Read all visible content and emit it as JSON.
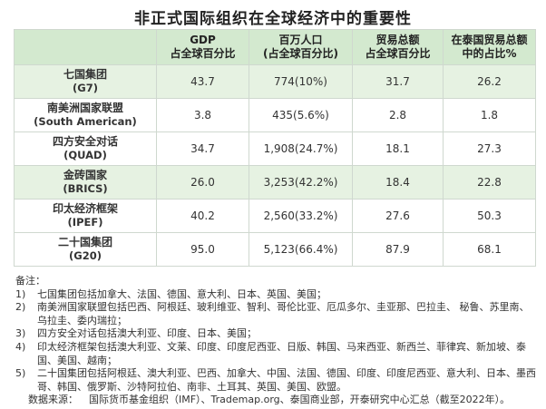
{
  "title": "非正式国际组织在全球经济中的重要性",
  "headers": [
    {
      "l1": "",
      "l2": ""
    },
    {
      "l1": "GDP",
      "l2": "占全球百分比"
    },
    {
      "l1": "百万人口",
      "l2": "(占全球百分比)"
    },
    {
      "l1": "贸易总额",
      "l2": "占全球百分比"
    },
    {
      "l1": "在泰国贸易总额",
      "l2": "中的占比%"
    }
  ],
  "rows": [
    {
      "name": "七国集团",
      "abbr": "(G7)",
      "gdp": "43.7",
      "pop": "774(10%)",
      "trade": "31.7",
      "thai": "26.2"
    },
    {
      "name": "南美洲国家联盟",
      "abbr": "(South American)",
      "gdp": "3.8",
      "pop": "435(5.6%)",
      "trade": "2.8",
      "thai": "1.8"
    },
    {
      "name": "四方安全对话",
      "abbr": "(QUAD)",
      "gdp": "34.7",
      "pop": "1,908(24.7%)",
      "trade": "18.1",
      "thai": "27.3"
    },
    {
      "name": "金砖国家",
      "abbr": "(BRICS)",
      "gdp": "26.0",
      "pop": "3,253(42.2%)",
      "trade": "18.4",
      "thai": "22.8"
    },
    {
      "name": "印太经济框架",
      "abbr": "(IPEF)",
      "gdp": "40.2",
      "pop": "2,560(33.2%)",
      "trade": "27.6",
      "thai": "50.3"
    },
    {
      "name": "二十国集团",
      "abbr": "(G20)",
      "gdp": "95.0",
      "pop": "5,123(66.4%)",
      "trade": "87.9",
      "thai": "68.1"
    }
  ],
  "notes": {
    "heading": "备注：",
    "items": [
      {
        "num": "1)",
        "text": "七国集团包括加拿大、法国、德国、意大利、日本、英国、美国；"
      },
      {
        "num": "2)",
        "text": "南美洲国家联盟包括巴西、阿根廷、玻利维亚、智利、哥伦比亚、厄瓜多尔、圭亚那、巴拉圭、 秘鲁、苏里南、乌拉圭、委内瑞拉；"
      },
      {
        "num": "3)",
        "text": "四方安全对话包括澳大利亚、印度、日本、美国；"
      },
      {
        "num": "4)",
        "text": "印太经济框架包括澳大利亚、文莱、印度、印度尼西亚、日版、韩国、马来西亚、新西兰、菲律宾、新加坡、泰国、美国、越南；"
      },
      {
        "num": "5)",
        "text": "二十国集团包括阿根廷、澳大利亚、巴西、加拿大、中国、法国、德国、印度、印度尼西亚、意大利、日本、墨西哥、韩国、俄罗斯、沙特阿拉伯、南非、土耳其、英国、美国、欧盟。"
      }
    ]
  },
  "source": {
    "label": "数据来源：",
    "text": "国际货币基金组织（IMF）、Trademap.org、泰国商业部，开泰研究中心汇总（截至2022年）。"
  },
  "colors": {
    "header_bg": "#d3e9cf",
    "shaded_row_bg": "#e6f2e2",
    "border": "#cfd8cf"
  }
}
